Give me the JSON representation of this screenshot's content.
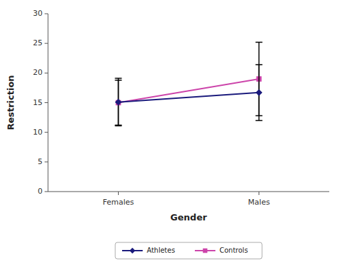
{
  "chart_data": {
    "type": "line",
    "categories": [
      "Females",
      "Males"
    ],
    "series": [
      {
        "name": "Athletes",
        "color": "#1a1a7c",
        "marker": "diamond",
        "values": [
          15.1,
          16.7
        ],
        "errors": [
          4.0,
          4.7
        ]
      },
      {
        "name": "Controls",
        "color": "#cc44aa",
        "marker": "square",
        "values": [
          15.0,
          19.0
        ],
        "errors": [
          3.8,
          6.2
        ]
      }
    ],
    "xlabel": "Gender",
    "ylabel": "Restriction",
    "ylim": [
      0,
      30
    ],
    "yticks": [
      0,
      5,
      10,
      15,
      20,
      25,
      30
    ],
    "grid": false,
    "legend": "bottom"
  }
}
